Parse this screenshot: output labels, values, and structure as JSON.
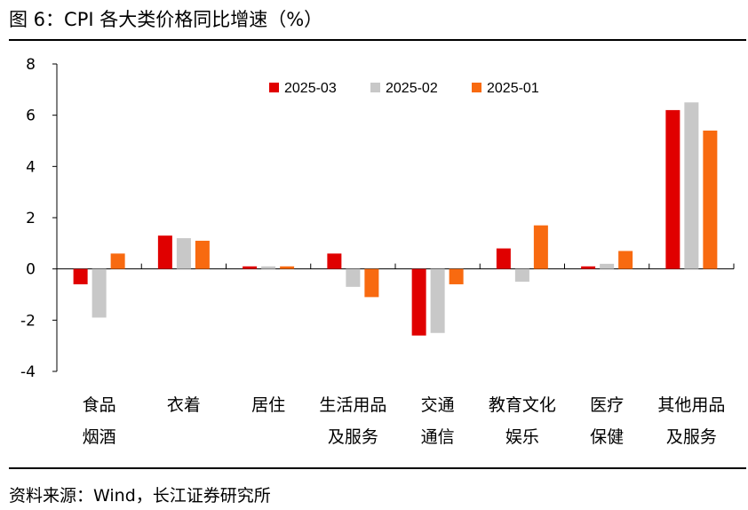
{
  "title": "图 6：CPI 各大类价格同比增速（%）",
  "source": "资料来源：Wind，长江证券研究所",
  "colors": {
    "2025-03": "#e00000",
    "2025-02": "#c8c8c8",
    "2025-01": "#f86a10"
  },
  "chart_data": {
    "type": "bar",
    "title": "CPI 各大类价格同比增速（%）",
    "categories": [
      [
        "食品",
        "烟酒"
      ],
      [
        "衣着"
      ],
      [
        "居住"
      ],
      [
        "生活用品",
        "及服务"
      ],
      [
        "交通",
        "通信"
      ],
      [
        "教育文化",
        "娱乐"
      ],
      [
        "医疗",
        "保健"
      ],
      [
        "其他用品",
        "及服务"
      ]
    ],
    "series": [
      {
        "name": "2025-03",
        "values": [
          -0.6,
          1.3,
          0.1,
          0.6,
          -2.6,
          0.8,
          0.1,
          6.2
        ]
      },
      {
        "name": "2025-02",
        "values": [
          -1.9,
          1.2,
          0.1,
          -0.7,
          -2.5,
          -0.5,
          0.2,
          6.5
        ]
      },
      {
        "name": "2025-01",
        "values": [
          0.6,
          1.1,
          0.1,
          -1.1,
          -0.6,
          1.7,
          0.7,
          5.4
        ]
      }
    ],
    "ylim": [
      -4,
      8
    ],
    "yticks": [
      "8",
      "6",
      "4",
      "2",
      "0",
      "-2",
      "-4"
    ],
    "ytick_values": [
      8,
      6,
      4,
      2,
      0,
      -2,
      -4
    ],
    "legend_position": "top-center",
    "xlabel": "",
    "ylabel": ""
  }
}
